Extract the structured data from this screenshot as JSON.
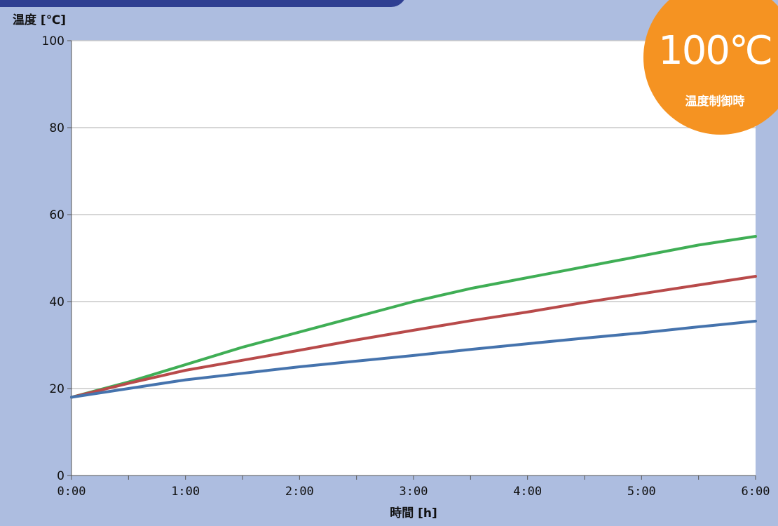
{
  "chart_data": {
    "type": "line",
    "title": "",
    "ylabel": "温度 [℃]",
    "xlabel": "時間 [h]",
    "ylim": [
      0,
      100
    ],
    "xlim": [
      0,
      6
    ],
    "y_ticks": [
      "0",
      "20",
      "40",
      "60",
      "80",
      "100"
    ],
    "x_ticks": [
      "0:00",
      "1:00",
      "2:00",
      "3:00",
      "4:00",
      "5:00",
      "6:00"
    ],
    "grid": true,
    "x": [
      0,
      0.5,
      1,
      1.5,
      2,
      2.5,
      3,
      3.5,
      4,
      4.5,
      5,
      5.5,
      6
    ],
    "series": [
      {
        "color": "#3fae55",
        "values": [
          18,
          21.5,
          25.5,
          29.5,
          33,
          36.5,
          40,
          43,
          45.5,
          48,
          50.5,
          53,
          55
        ]
      },
      {
        "color": "#b84a4a",
        "values": [
          18,
          21.2,
          24.2,
          26.5,
          28.8,
          31.2,
          33.4,
          35.6,
          37.6,
          39.8,
          41.8,
          43.8,
          45.8
        ]
      },
      {
        "color": "#4573ad",
        "values": [
          18,
          20,
          22,
          23.5,
          25,
          26.3,
          27.6,
          29,
          30.3,
          31.6,
          32.8,
          34.2,
          35.5
        ]
      }
    ]
  },
  "badge": {
    "value": "100℃",
    "caption": "温度制御時"
  },
  "colors": {
    "page_bg": "#adbde0",
    "plot_bg": "#ffffff",
    "grid": "#c8c8c8",
    "badge": "#f59322",
    "top_tab": "#2f3f92"
  }
}
